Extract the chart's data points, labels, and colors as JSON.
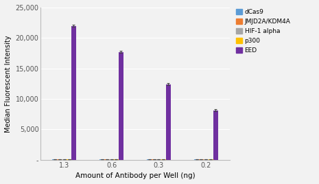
{
  "categories": [
    "1.3",
    "0.6",
    "0.3",
    "0.2"
  ],
  "series": [
    {
      "label": "dCas9",
      "color": "#5b9bd5",
      "values": [
        100,
        100,
        100,
        100
      ],
      "errors": [
        20,
        20,
        20,
        20
      ]
    },
    {
      "label": "JMJD2A/KDM4A",
      "color": "#ed7d31",
      "values": [
        100,
        100,
        100,
        100
      ],
      "errors": [
        20,
        20,
        20,
        20
      ]
    },
    {
      "label": "HIF-1 alpha",
      "color": "#a5a5a5",
      "values": [
        100,
        100,
        100,
        100
      ],
      "errors": [
        20,
        20,
        20,
        20
      ]
    },
    {
      "label": "p300",
      "color": "#ffc000",
      "values": [
        100,
        100,
        100,
        100
      ],
      "errors": [
        20,
        20,
        20,
        20
      ]
    },
    {
      "label": "EED",
      "color": "#7030a0",
      "values": [
        22000,
        17700,
        12400,
        8100
      ],
      "errors": [
        180,
        180,
        180,
        180
      ]
    }
  ],
  "ylabel": "Median Fluorescent Intensity",
  "xlabel": "Amount of Antibody per Well (ng)",
  "ylim": [
    0,
    25000
  ],
  "yticks": [
    0,
    5000,
    10000,
    15000,
    20000,
    25000
  ],
  "ytick_labels": [
    "-",
    "5,000",
    "10,000",
    "15,000",
    "20,000",
    "25,000"
  ],
  "background_color": "#f2f2f2",
  "grid_color": "#ffffff",
  "bar_width": 0.1,
  "figsize": [
    4.65,
    2.68
  ],
  "dpi": 100
}
